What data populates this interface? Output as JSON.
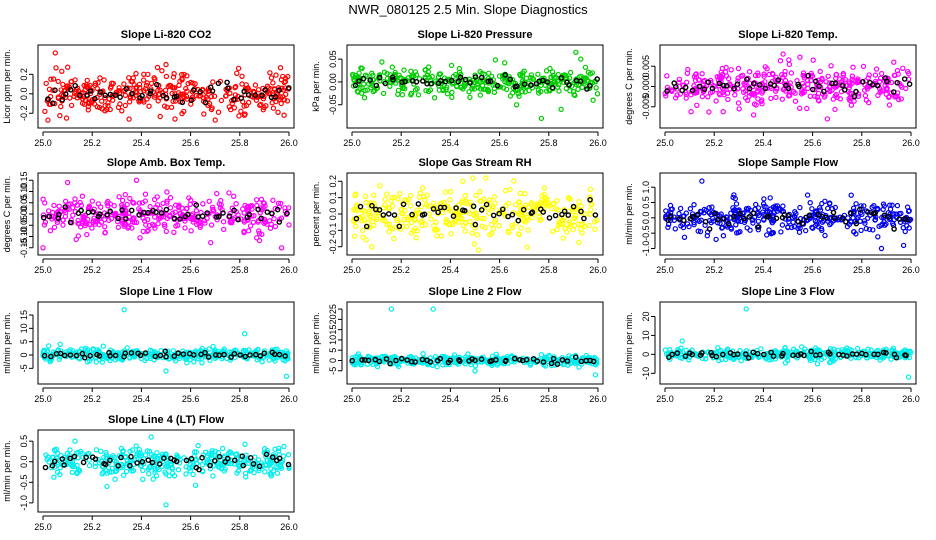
{
  "title": "NWR_080125  2.5 Min. Slope Diagnostics",
  "chart_data": [
    {
      "type": "scatter",
      "title": "Slope Li-820 CO2",
      "ylabel": "Licor ppm per min.",
      "color": "#ff0000",
      "xlim": [
        25.0,
        26.0
      ],
      "ylim": [
        -0.3,
        0.45
      ],
      "yticks": [
        -0.2,
        0.0,
        0.2
      ],
      "ytick_labels": [
        "-0.2",
        "0.0",
        "0.2"
      ],
      "xticks": [
        25.0,
        25.2,
        25.4,
        25.6,
        25.8,
        26.0
      ],
      "xtick_labels": [
        "25.0",
        "25.2",
        "25.4",
        "25.6",
        "25.8",
        "26.0"
      ],
      "n_points": 360,
      "spread": 0.1,
      "outliers": [
        [
          25.05,
          0.42
        ],
        [
          25.02,
          -0.27
        ],
        [
          25.35,
          -0.26
        ],
        [
          25.5,
          0.3
        ],
        [
          25.7,
          -0.27
        ],
        [
          25.98,
          -0.22
        ]
      ],
      "marker_color": "#000000"
    },
    {
      "type": "scatter",
      "title": "Slope Li-820 Pressure",
      "ylabel": "kPa per min.",
      "color": "#00cc00",
      "xlim": [
        25.0,
        26.0
      ],
      "ylim": [
        -0.09,
        0.07
      ],
      "yticks": [
        -0.05,
        0.0,
        0.05
      ],
      "ytick_labels": [
        "-0.05",
        "0.00",
        "0.05"
      ],
      "xticks": [
        25.0,
        25.2,
        25.4,
        25.6,
        25.8,
        26.0
      ],
      "xtick_labels": [
        "25.0",
        "25.2",
        "25.4",
        "25.6",
        "25.8",
        "26.0"
      ],
      "n_points": 360,
      "spread": 0.015,
      "outliers": [
        [
          25.77,
          -0.08
        ],
        [
          25.91,
          0.065
        ],
        [
          25.93,
          0.05
        ],
        [
          25.85,
          -0.06
        ],
        [
          25.98,
          -0.04
        ]
      ],
      "marker_color": "#000000"
    },
    {
      "type": "scatter",
      "title": "Slope Li-820 Temp.",
      "ylabel": "degrees C per min.",
      "color": "#ff00ff",
      "xlim": [
        25.0,
        26.0
      ],
      "ylim": [
        -0.009,
        0.009
      ],
      "yticks": [
        -0.005,
        0.0,
        0.005
      ],
      "ytick_labels": [
        "-0.005",
        "0.000",
        "0.005"
      ],
      "xticks": [
        25.0,
        25.2,
        25.4,
        25.6,
        25.8,
        26.0
      ],
      "xtick_labels": [
        "25.0",
        "25.2",
        "25.4",
        "25.6",
        "25.8",
        "26.0"
      ],
      "n_points": 360,
      "spread": 0.0025,
      "outliers": [
        [
          25.48,
          0.008
        ],
        [
          25.36,
          -0.007
        ],
        [
          25.66,
          -0.008
        ],
        [
          25.93,
          0.006
        ]
      ],
      "marker_color": "#000000"
    },
    {
      "type": "scatter",
      "title": "Slope Amb. Box Temp.",
      "ylabel": "degrees C per min.",
      "color": "#ff00ff",
      "xlim": [
        25.0,
        26.0
      ],
      "ylim": [
        -0.16,
        0.16
      ],
      "yticks": [
        -0.15,
        -0.1,
        -0.05,
        0.0,
        0.05,
        0.1,
        0.15
      ],
      "ytick_labels": [
        "-0.15",
        "-0.10",
        "-0.05",
        "0.00",
        "0.05",
        "0.10",
        "0.15"
      ],
      "xticks": [
        25.0,
        25.2,
        25.4,
        25.6,
        25.8,
        26.0
      ],
      "xtick_labels": [
        "25.0",
        "25.2",
        "25.4",
        "25.6",
        "25.8",
        "26.0"
      ],
      "n_points": 360,
      "spread": 0.04,
      "outliers": [
        [
          25.1,
          0.14
        ],
        [
          25.38,
          0.15
        ],
        [
          25.0,
          -0.15
        ],
        [
          25.97,
          -0.15
        ]
      ],
      "marker_color": "#000000"
    },
    {
      "type": "scatter",
      "title": "Slope Gas Stream RH",
      "ylabel": "percent per min.",
      "color": "#ffff00",
      "xlim": [
        25.0,
        26.0
      ],
      "ylim": [
        -0.22,
        0.22
      ],
      "yticks": [
        -0.2,
        -0.1,
        0.0,
        0.1,
        0.2
      ],
      "ytick_labels": [
        "-0.2",
        "-0.1",
        "0.0",
        "0.1",
        "0.2"
      ],
      "xticks": [
        25.0,
        25.2,
        25.4,
        25.6,
        25.8,
        26.0
      ],
      "xtick_labels": [
        "25.0",
        "25.2",
        "25.4",
        "25.6",
        "25.8",
        "26.0"
      ],
      "n_points": 360,
      "spread": 0.08,
      "outliers": [
        [
          25.45,
          0.2
        ],
        [
          25.08,
          -0.2
        ]
      ],
      "marker_color": "#000000"
    },
    {
      "type": "scatter",
      "title": "Slope Sample Flow",
      "ylabel": "ml/min per min.",
      "color": "#0000ee",
      "xlim": [
        25.0,
        26.0
      ],
      "ylim": [
        -1.05,
        1.3
      ],
      "yticks": [
        -1.0,
        -0.5,
        0.0,
        0.5,
        1.0
      ],
      "ytick_labels": [
        "-1.0",
        "-0.5",
        "0.0",
        "0.5",
        "1.0"
      ],
      "xticks": [
        25.0,
        25.2,
        25.4,
        25.6,
        25.8,
        26.0
      ],
      "xtick_labels": [
        "25.0",
        "25.2",
        "25.4",
        "25.6",
        "25.8",
        "26.0"
      ],
      "n_points": 360,
      "spread": 0.25,
      "outliers": [
        [
          25.15,
          1.2
        ],
        [
          25.28,
          0.75
        ],
        [
          25.88,
          -1.0
        ],
        [
          25.97,
          -0.9
        ]
      ],
      "marker_color": "#000000"
    },
    {
      "type": "scatter",
      "title": "Slope Line 1 Flow",
      "ylabel": "ml/min per min.",
      "color": "#00eeee",
      "xlim": [
        25.0,
        26.0
      ],
      "ylim": [
        -9,
        18
      ],
      "yticks": [
        -5,
        0,
        5,
        10,
        15
      ],
      "ytick_labels": [
        "-5",
        "0",
        "5",
        "10",
        "15"
      ],
      "xticks": [
        25.0,
        25.2,
        25.4,
        25.6,
        25.8,
        26.0
      ],
      "xtick_labels": [
        "25.0",
        "25.2",
        "25.4",
        "25.6",
        "25.8",
        "26.0"
      ],
      "n_points": 360,
      "spread": 1.2,
      "outliers": [
        [
          25.33,
          17
        ],
        [
          25.82,
          8
        ],
        [
          25.99,
          -8
        ],
        [
          25.5,
          -6
        ],
        [
          25.07,
          4
        ]
      ],
      "marker_color": "#000000"
    },
    {
      "type": "scatter",
      "title": "Slope Line 2 Flow",
      "ylabel": "ml/min per min.",
      "color": "#00eeee",
      "xlim": [
        25.0,
        26.0
      ],
      "ylim": [
        -9,
        26
      ],
      "yticks": [
        -5,
        0,
        5,
        10,
        15,
        20,
        25
      ],
      "ytick_labels": [
        "-5",
        "0",
        "5",
        "10",
        "15",
        "20",
        "25"
      ],
      "xticks": [
        25.0,
        25.2,
        25.4,
        25.6,
        25.8,
        26.0
      ],
      "xtick_labels": [
        "25.0",
        "25.2",
        "25.4",
        "25.6",
        "25.8",
        "26.0"
      ],
      "n_points": 360,
      "spread": 1.2,
      "outliers": [
        [
          25.16,
          25
        ],
        [
          25.33,
          25
        ],
        [
          25.99,
          -7
        ],
        [
          25.5,
          -5
        ]
      ],
      "marker_color": "#000000"
    },
    {
      "type": "scatter",
      "title": "Slope Line 3 Flow",
      "ylabel": "ml/min per min.",
      "color": "#00eeee",
      "xlim": [
        25.0,
        26.0
      ],
      "ylim": [
        -13,
        25
      ],
      "yticks": [
        -10,
        0,
        10,
        20
      ],
      "ytick_labels": [
        "-10",
        "0",
        "10",
        "20"
      ],
      "xticks": [
        25.0,
        25.2,
        25.4,
        25.6,
        25.8,
        26.0
      ],
      "xtick_labels": [
        "25.0",
        "25.2",
        "25.4",
        "25.6",
        "25.8",
        "26.0"
      ],
      "n_points": 360,
      "spread": 1.5,
      "outliers": [
        [
          25.33,
          24
        ],
        [
          25.99,
          -12
        ],
        [
          25.07,
          7
        ],
        [
          25.62,
          -5
        ]
      ],
      "marker_color": "#000000"
    },
    {
      "type": "scatter",
      "title": "Slope Line 4 (LT) Flow",
      "ylabel": "ml/min per min.",
      "color": "#00eeee",
      "xlim": [
        25.0,
        26.0
      ],
      "ylim": [
        -1.1,
        0.65
      ],
      "yticks": [
        -1.0,
        -0.5,
        0.0,
        0.5
      ],
      "ytick_labels": [
        "-1.0",
        "-0.5",
        "0.0",
        "0.5"
      ],
      "xticks": [
        25.0,
        25.2,
        25.4,
        25.6,
        25.8,
        26.0
      ],
      "xtick_labels": [
        "25.0",
        "25.2",
        "25.4",
        "25.6",
        "25.8",
        "26.0"
      ],
      "n_points": 360,
      "spread": 0.17,
      "outliers": [
        [
          25.5,
          -1.05
        ],
        [
          25.44,
          0.6
        ],
        [
          25.13,
          0.5
        ],
        [
          25.26,
          -0.6
        ]
      ],
      "marker_color": "#000000"
    }
  ]
}
